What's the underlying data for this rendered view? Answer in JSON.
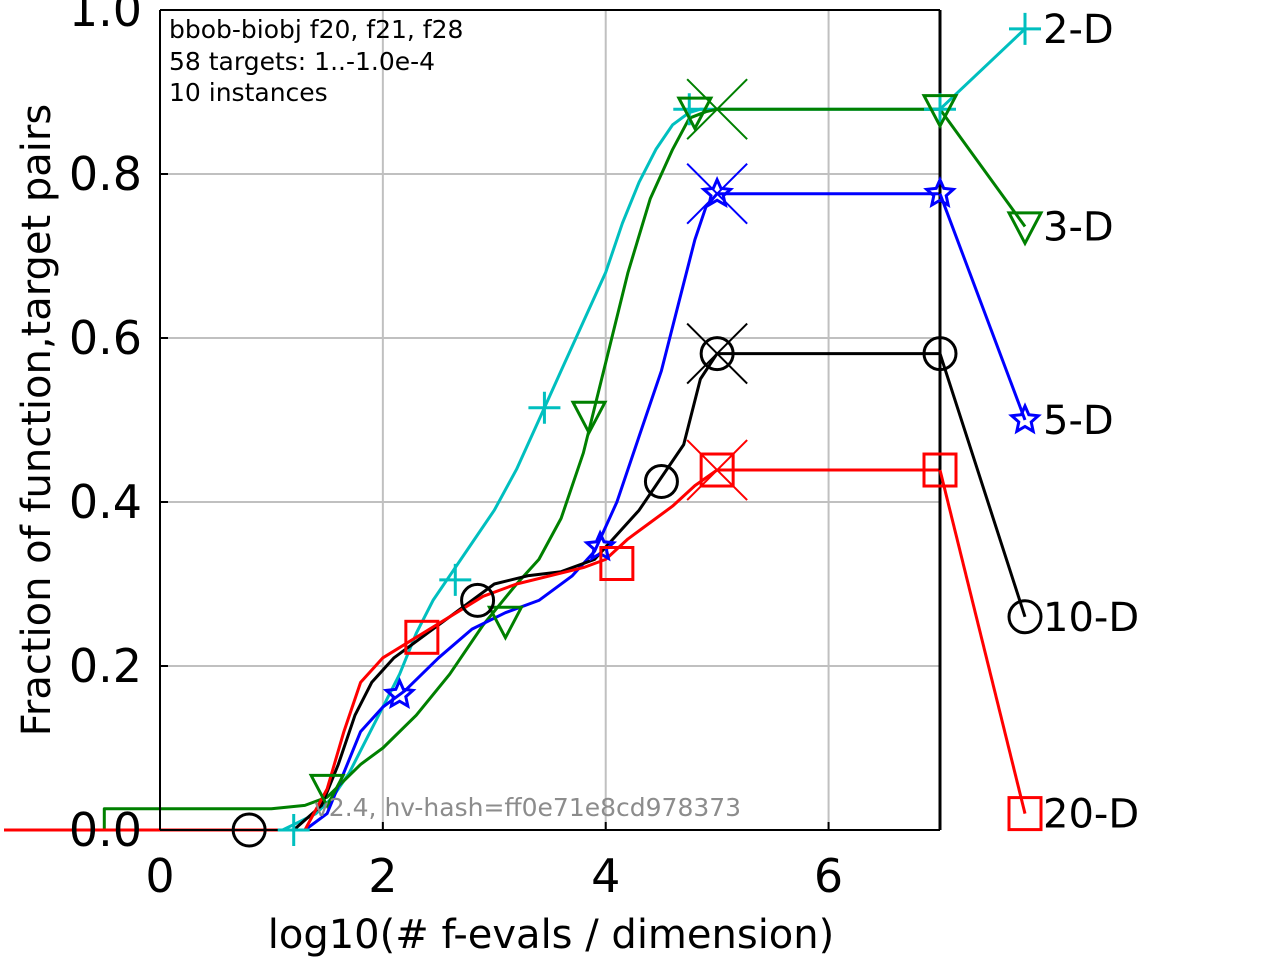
{
  "chart_data": {
    "type": "line",
    "info_lines": [
      "bbob-biobj f20, f21, f28",
      "58 targets: 1..-1.0e-4",
      "10 instances"
    ],
    "version_text": "v2.4, hv-hash=ff0e71e8cd978373",
    "xlabel": "log10(# f-evals / dimension)",
    "ylabel": "Fraction of function,target pairs",
    "xlim": [
      0,
      7
    ],
    "ylim": [
      0,
      1
    ],
    "xticks": [
      0,
      2,
      4,
      6
    ],
    "xtick_labels": [
      "0",
      "2",
      "4",
      "6"
    ],
    "yticks": [
      0,
      0.2,
      0.4,
      0.6,
      0.8,
      1.0
    ],
    "ytick_labels": [
      "0.0",
      "0.2",
      "0.4",
      "0.6",
      "0.8",
      "1.0"
    ],
    "grid": true,
    "budget_line_x": 7,
    "legend_placement": "right",
    "series": [
      {
        "name": "2-D",
        "color": "#00bfbf",
        "marker": "plus",
        "x": [
          -1.4,
          1.1,
          1.25,
          1.4,
          1.55,
          1.7,
          1.85,
          2.0,
          2.15,
          2.3,
          2.45,
          2.6,
          2.8,
          3.0,
          3.2,
          3.4,
          3.6,
          3.8,
          4.0,
          4.15,
          4.3,
          4.45,
          4.6,
          4.75,
          4.85,
          5.0,
          7.0
        ],
        "y": [
          0.0,
          0.0,
          0.01,
          0.02,
          0.04,
          0.07,
          0.11,
          0.15,
          0.19,
          0.24,
          0.28,
          0.31,
          0.35,
          0.39,
          0.44,
          0.5,
          0.56,
          0.62,
          0.68,
          0.74,
          0.79,
          0.83,
          0.86,
          0.875,
          0.879,
          0.879,
          0.879
        ],
        "marker_x": [
          1.2,
          2.65,
          3.45,
          4.75,
          7.0
        ],
        "marker_y": [
          0.0,
          0.305,
          0.515,
          0.879,
          0.879
        ],
        "legend_marker_y": 0.977
      },
      {
        "name": "3-D",
        "color": "#008000",
        "marker": "triangle-down",
        "x": [
          -1.4,
          -0.5,
          -0.5,
          1.0,
          1.3,
          1.5,
          1.65,
          1.8,
          2.0,
          2.3,
          2.6,
          2.9,
          3.2,
          3.4,
          3.6,
          3.8,
          4.0,
          4.2,
          4.4,
          4.6,
          4.75,
          4.9,
          5.0,
          7.0
        ],
        "y": [
          0.0,
          0.0,
          0.026,
          0.026,
          0.03,
          0.04,
          0.06,
          0.08,
          0.1,
          0.14,
          0.19,
          0.25,
          0.3,
          0.33,
          0.38,
          0.46,
          0.57,
          0.68,
          0.77,
          0.83,
          0.868,
          0.876,
          0.879,
          0.879
        ],
        "marker_x": [
          1.5,
          3.1,
          3.85,
          4.8,
          7.0
        ],
        "marker_y": [
          0.05,
          0.255,
          0.505,
          0.876,
          0.879
        ],
        "legend_marker_y": 0.736
      },
      {
        "name": "5-D",
        "color": "#0000ff",
        "marker": "star",
        "x": [
          -1.4,
          1.3,
          1.5,
          1.65,
          1.8,
          2.0,
          2.2,
          2.5,
          2.8,
          3.1,
          3.4,
          3.7,
          3.9,
          4.1,
          4.3,
          4.5,
          4.65,
          4.8,
          4.9,
          5.0,
          7.0
        ],
        "y": [
          0.0,
          0.0,
          0.02,
          0.07,
          0.12,
          0.15,
          0.17,
          0.21,
          0.245,
          0.265,
          0.28,
          0.31,
          0.34,
          0.4,
          0.48,
          0.56,
          0.64,
          0.72,
          0.76,
          0.776,
          0.776
        ],
        "marker_x": [
          2.15,
          3.95,
          5.0,
          7.0
        ],
        "marker_y": [
          0.165,
          0.345,
          0.776,
          0.776
        ],
        "legend_marker_y": 0.5
      },
      {
        "name": "10-D",
        "color": "#000000",
        "marker": "circle",
        "x": [
          -1.4,
          1.2,
          1.45,
          1.6,
          1.75,
          1.9,
          2.1,
          2.4,
          2.7,
          3.0,
          3.3,
          3.6,
          3.9,
          4.1,
          4.3,
          4.5,
          4.7,
          4.85,
          5.0,
          7.0
        ],
        "y": [
          0.0,
          0.0,
          0.03,
          0.08,
          0.14,
          0.18,
          0.21,
          0.24,
          0.27,
          0.3,
          0.31,
          0.315,
          0.33,
          0.36,
          0.39,
          0.43,
          0.47,
          0.55,
          0.581,
          0.581
        ],
        "marker_x": [
          0.8,
          2.85,
          4.5,
          5.0,
          7.0
        ],
        "marker_y": [
          0.0,
          0.28,
          0.425,
          0.581,
          0.581
        ],
        "legend_marker_y": 0.26
      },
      {
        "name": "20-D",
        "color": "#ff0000",
        "marker": "square",
        "x": [
          -1.4,
          1.3,
          1.5,
          1.65,
          1.8,
          2.0,
          2.3,
          2.6,
          2.9,
          3.2,
          3.5,
          3.8,
          4.0,
          4.2,
          4.4,
          4.6,
          4.8,
          5.0,
          7.0
        ],
        "y": [
          0.0,
          0.0,
          0.05,
          0.12,
          0.18,
          0.21,
          0.235,
          0.26,
          0.285,
          0.3,
          0.31,
          0.32,
          0.33,
          0.355,
          0.375,
          0.395,
          0.42,
          0.439,
          0.439
        ],
        "marker_x": [
          2.35,
          4.1,
          5.0,
          7.0
        ],
        "marker_y": [
          0.235,
          0.325,
          0.439,
          0.439
        ],
        "legend_marker_y": 0.02
      }
    ],
    "end_markers": [
      {
        "x": 5.0,
        "y": 0.879,
        "color": "#008000"
      },
      {
        "x": 5.0,
        "y": 0.776,
        "color": "#0000ff"
      },
      {
        "x": 5.0,
        "y": 0.581,
        "color": "#000000"
      },
      {
        "x": 5.0,
        "y": 0.439,
        "color": "#ff0000"
      }
    ]
  }
}
